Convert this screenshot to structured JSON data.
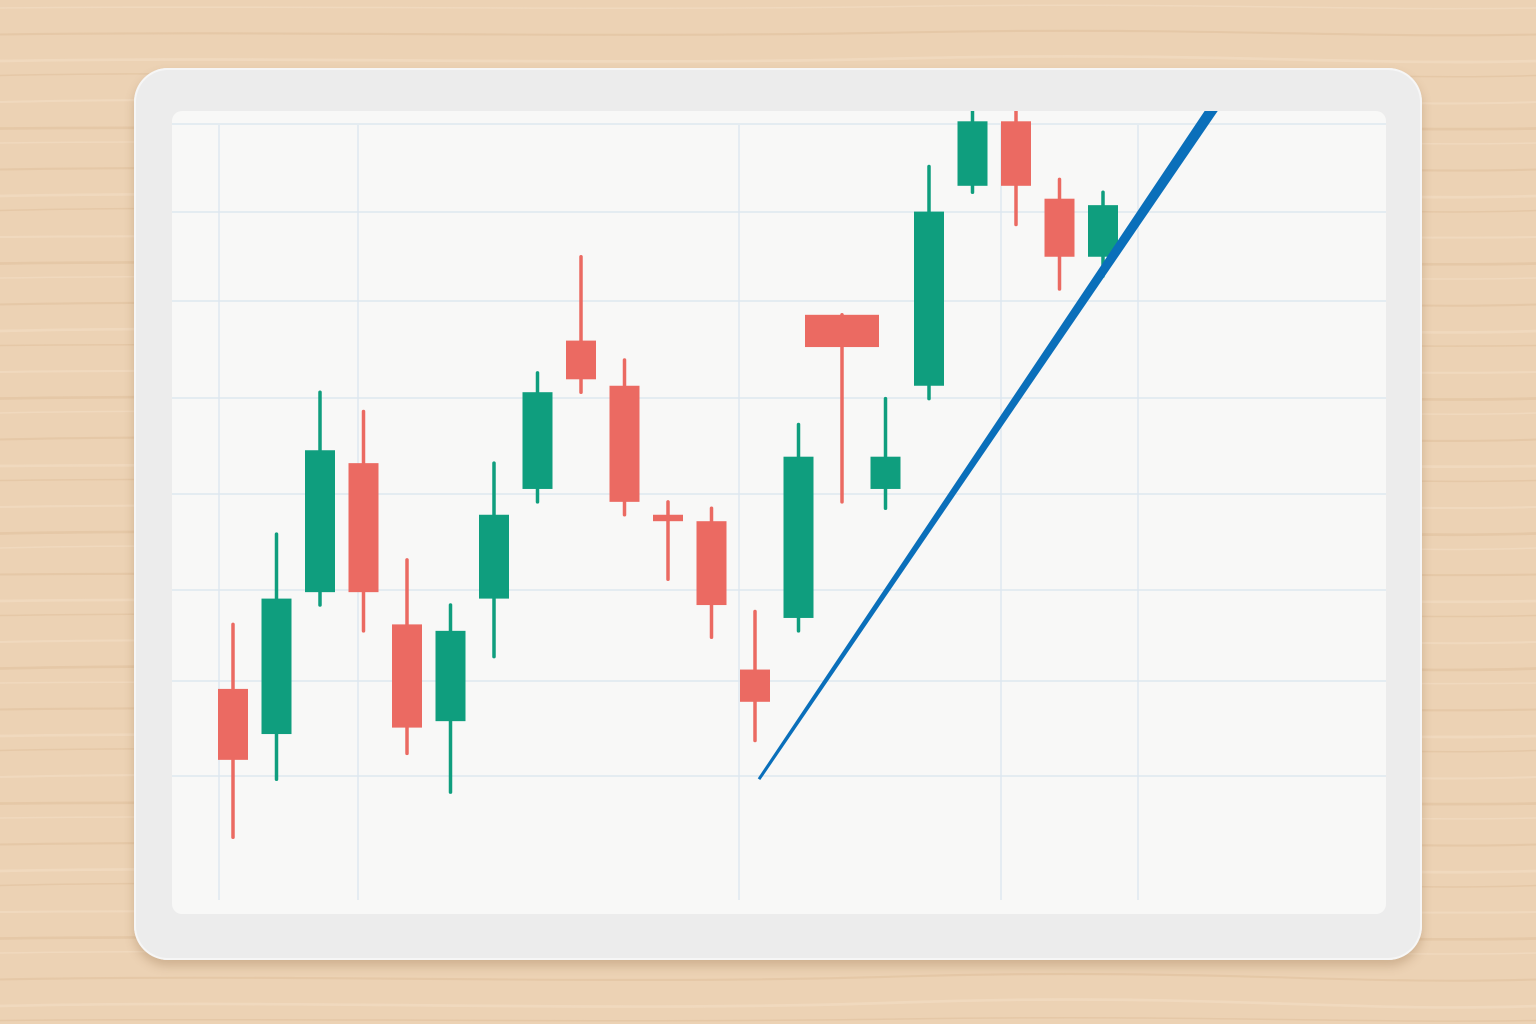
{
  "colors": {
    "desk": "#ecd2b4",
    "up": "#0f9e7e",
    "down": "#eb6a62",
    "arrow": "#0a6fba",
    "grid": "#dde7ef"
  },
  "icons": {
    "trend": "trend-arrow-icon"
  },
  "chart_data": {
    "type": "candlestick",
    "title": "",
    "xlabel": "",
    "ylabel": "",
    "grid": true,
    "legend": "none",
    "ylim": [
      0,
      100
    ],
    "candles": [
      {
        "open": 18,
        "close": 7,
        "high": 28,
        "low": -5
      },
      {
        "open": 11,
        "close": 32,
        "high": 42,
        "low": 4
      },
      {
        "open": 33,
        "close": 55,
        "high": 64,
        "low": 31
      },
      {
        "open": 53,
        "close": 33,
        "high": 61,
        "low": 27
      },
      {
        "open": 28,
        "close": 12,
        "high": 38,
        "low": 8
      },
      {
        "open": 13,
        "close": 27,
        "high": 31,
        "low": 2
      },
      {
        "open": 32,
        "close": 45,
        "high": 53,
        "low": 23
      },
      {
        "open": 49,
        "close": 64,
        "high": 67,
        "low": 47
      },
      {
        "open": 72,
        "close": 66,
        "high": 85,
        "low": 64
      },
      {
        "open": 65,
        "close": 47,
        "high": 69,
        "low": 45
      },
      {
        "open": 45,
        "close": 44,
        "high": 47,
        "low": 35
      },
      {
        "open": 44,
        "close": 31,
        "high": 46,
        "low": 26
      },
      {
        "open": 21,
        "close": 16,
        "high": 30,
        "low": 10
      },
      {
        "open": 29,
        "close": 54,
        "high": 59,
        "low": 27
      },
      {
        "open": 76,
        "close": 71,
        "high": 76,
        "low": 47
      },
      {
        "open": 49,
        "close": 54,
        "high": 63,
        "low": 46
      },
      {
        "open": 65,
        "close": 92,
        "high": 99,
        "low": 63
      },
      {
        "open": 96,
        "close": 106,
        "high": 112,
        "low": 95
      },
      {
        "open": 106,
        "close": 96,
        "high": 112,
        "low": 90
      },
      {
        "open": 94,
        "close": 85,
        "high": 97,
        "low": 80
      },
      {
        "open": 85,
        "close": 93,
        "high": 95,
        "low": 82
      }
    ],
    "trend_arrow": {
      "start_index": 12,
      "start_value": 4,
      "end_value": 133
    }
  }
}
